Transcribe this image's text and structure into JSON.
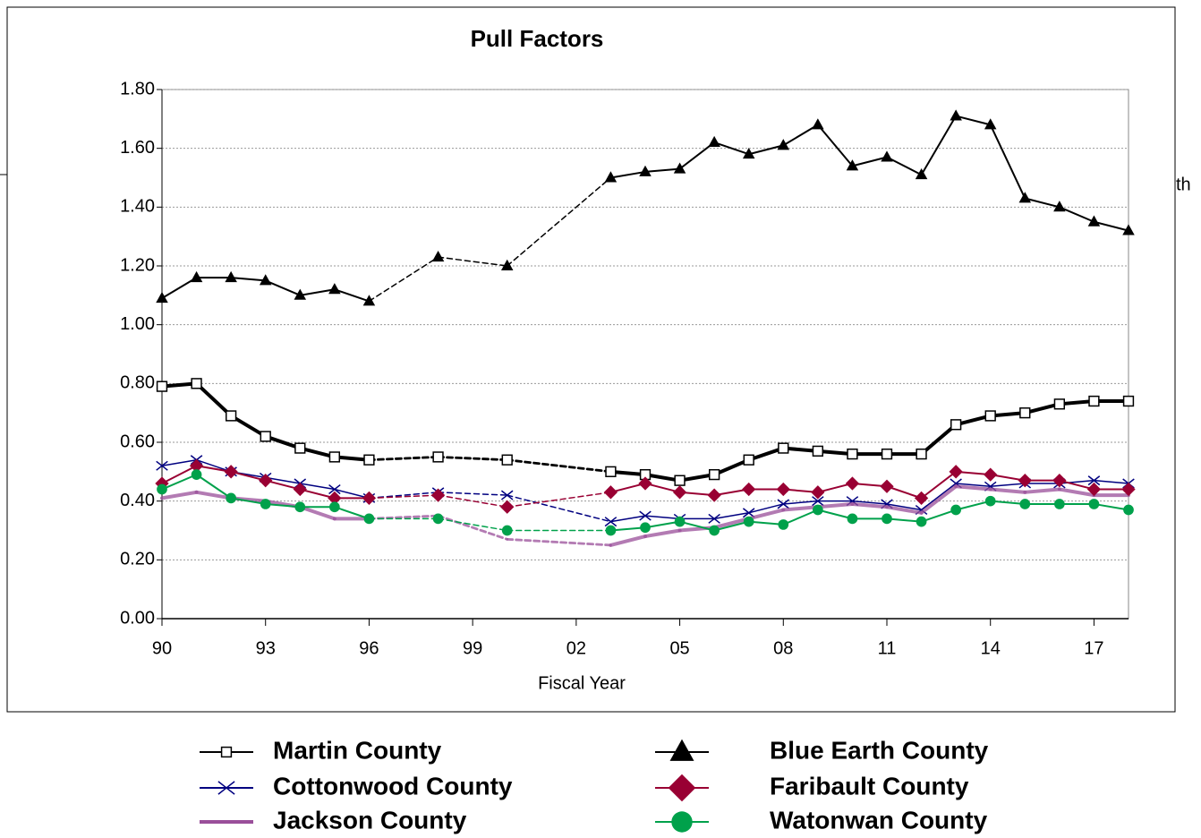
{
  "chart_data": {
    "type": "line",
    "title": "Pull Factors",
    "x_label": "Fiscal Year",
    "annotation": "th",
    "x": [
      1990,
      1991,
      1992,
      1993,
      1994,
      1995,
      1996,
      1998,
      2000,
      2003,
      2004,
      2005,
      2006,
      2007,
      2008,
      2009,
      2010,
      2011,
      2012,
      2013,
      2014,
      2015,
      2016,
      2017,
      2018
    ],
    "xlim": [
      1990,
      2018
    ],
    "xticks": [
      {
        "value": 1990,
        "label": "90"
      },
      {
        "value": 1993,
        "label": "93"
      },
      {
        "value": 1996,
        "label": "96"
      },
      {
        "value": 1999,
        "label": "99"
      },
      {
        "value": 2002,
        "label": "02"
      },
      {
        "value": 2005,
        "label": "05"
      },
      {
        "value": 2008,
        "label": "08"
      },
      {
        "value": 2011,
        "label": "11"
      },
      {
        "value": 2014,
        "label": "14"
      },
      {
        "value": 2017,
        "label": "17"
      }
    ],
    "ylim": [
      0,
      1.8
    ],
    "yticks": [
      {
        "value": 0,
        "label": "0.00"
      },
      {
        "value": 0.2,
        "label": "0.20"
      },
      {
        "value": 0.4,
        "label": "0.40"
      },
      {
        "value": 0.6,
        "label": "0.60"
      },
      {
        "value": 0.8,
        "label": "0.80"
      },
      {
        "value": 1,
        "label": "1.00"
      },
      {
        "value": 1.2,
        "label": "1.20"
      },
      {
        "value": 1.4,
        "label": "1.40"
      },
      {
        "value": 1.6,
        "label": "1.60"
      },
      {
        "value": 1.8,
        "label": "1.80"
      }
    ],
    "grid": true,
    "series": [
      {
        "name": "Martin County",
        "color": "#000000",
        "marker": "square",
        "values": [
          0.79,
          0.8,
          0.69,
          0.62,
          0.58,
          0.55,
          0.54,
          0.55,
          0.54,
          0.5,
          0.49,
          0.47,
          0.49,
          0.54,
          0.58,
          0.57,
          0.56,
          0.56,
          0.56,
          0.66,
          0.69,
          0.7,
          0.73,
          0.74,
          0.74
        ]
      },
      {
        "name": "Cottonwood County",
        "color": "#000080",
        "marker": "x",
        "values": [
          0.52,
          0.54,
          0.5,
          0.48,
          0.46,
          0.44,
          0.41,
          0.43,
          0.42,
          0.33,
          0.35,
          0.34,
          0.34,
          0.36,
          0.39,
          0.4,
          0.4,
          0.39,
          0.37,
          0.46,
          0.45,
          0.46,
          0.46,
          0.47,
          0.46
        ]
      },
      {
        "name": "Jackson County",
        "color": "#9a4f9a",
        "marker": "none",
        "values": [
          0.41,
          0.43,
          0.41,
          0.4,
          0.38,
          0.34,
          0.34,
          0.35,
          0.27,
          0.25,
          0.28,
          0.3,
          0.31,
          0.34,
          0.37,
          0.38,
          0.39,
          0.38,
          0.36,
          0.45,
          0.44,
          0.43,
          0.44,
          0.42,
          0.42
        ]
      },
      {
        "name": "Blue Earth County",
        "color": "#000000",
        "marker": "triangle",
        "values": [
          1.09,
          1.16,
          1.16,
          1.15,
          1.1,
          1.12,
          1.08,
          1.23,
          1.2,
          1.5,
          1.52,
          1.53,
          1.62,
          1.58,
          1.61,
          1.68,
          1.54,
          1.57,
          1.51,
          1.71,
          1.68,
          1.43,
          1.4,
          1.35,
          1.32
        ]
      },
      {
        "name": "Faribault County",
        "color": "#990033",
        "marker": "diamond",
        "values": [
          0.46,
          0.52,
          0.5,
          0.47,
          0.44,
          0.41,
          0.41,
          0.42,
          0.38,
          0.43,
          0.46,
          0.43,
          0.42,
          0.44,
          0.44,
          0.43,
          0.46,
          0.45,
          0.41,
          0.5,
          0.49,
          0.47,
          0.47,
          0.44,
          0.44
        ]
      },
      {
        "name": "Watonwan County",
        "color": "#00a14b",
        "marker": "circle",
        "values": [
          0.44,
          0.49,
          0.41,
          0.39,
          0.38,
          0.38,
          0.34,
          0.34,
          0.3,
          0.3,
          0.31,
          0.33,
          0.3,
          0.33,
          0.32,
          0.37,
          0.34,
          0.34,
          0.33,
          0.37,
          0.4,
          0.39,
          0.39,
          0.39,
          0.37
        ]
      }
    ]
  }
}
